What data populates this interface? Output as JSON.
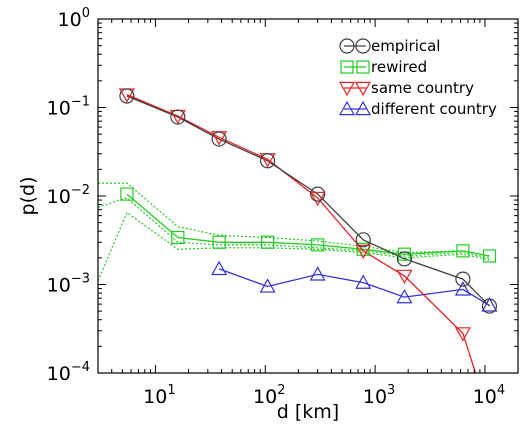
{
  "chart_data": {
    "type": "line",
    "xlabel": "d  [km]",
    "ylabel": "p(d)",
    "xscale": "log",
    "yscale": "log",
    "xlim": [
      3,
      20000
    ],
    "ylim": [
      0.0001,
      1
    ],
    "grid": false,
    "legend_position": "top-right",
    "x_ticks": [
      {
        "value": 10,
        "base": "10",
        "exp": "1"
      },
      {
        "value": 100,
        "base": "10",
        "exp": "2"
      },
      {
        "value": 1000,
        "base": "10",
        "exp": "3"
      },
      {
        "value": 10000,
        "base": "10",
        "exp": "4"
      }
    ],
    "y_ticks": [
      {
        "value": 0.0001,
        "base": "10",
        "exp": "−4"
      },
      {
        "value": 0.001,
        "base": "10",
        "exp": "−3"
      },
      {
        "value": 0.01,
        "base": "10",
        "exp": "−2"
      },
      {
        "value": 0.1,
        "base": "10",
        "exp": "−1"
      },
      {
        "value": 1,
        "base": "10",
        "exp": "0"
      }
    ],
    "series": [
      {
        "name": "empirical",
        "color": "#404040",
        "marker": "circle",
        "x": [
          5.5,
          16,
          38,
          105,
          300,
          780,
          1850,
          6300,
          11000
        ],
        "y": [
          0.135,
          0.078,
          0.044,
          0.025,
          0.0105,
          0.0032,
          0.00195,
          0.00115,
          0.00057
        ]
      },
      {
        "name": "rewired",
        "color": "#22cc22",
        "marker": "square",
        "x": [
          5.5,
          16,
          38,
          105,
          300,
          780,
          1850,
          6300,
          11000
        ],
        "y": [
          0.0105,
          0.0034,
          0.003,
          0.003,
          0.0028,
          0.0025,
          0.0022,
          0.0024,
          0.0021
        ]
      },
      {
        "name": "same country",
        "color": "#ee2222",
        "marker": "triangle-down",
        "x": [
          5.5,
          16,
          38,
          105,
          300,
          780,
          1850,
          6300,
          8200
        ],
        "y": [
          0.14,
          0.08,
          0.046,
          0.026,
          0.0095,
          0.0024,
          0.00125,
          0.00028,
          0.0001
        ]
      },
      {
        "name": "different country",
        "color": "#3333dd",
        "marker": "triangle-up",
        "x": [
          38,
          105,
          300,
          780,
          1850,
          6300,
          11000
        ],
        "y": [
          0.0015,
          0.00095,
          0.0013,
          0.00105,
          0.00072,
          0.00088,
          0.00058
        ]
      }
    ],
    "bands": [
      {
        "color": "#22cc22",
        "style": "dotted",
        "x": [
          3,
          5.5,
          16,
          38,
          105,
          300,
          780,
          1850,
          6300,
          11000
        ],
        "y": [
          0.014,
          0.014,
          0.0045,
          0.0036,
          0.0034,
          0.0031,
          0.0027,
          0.0023,
          0.0024,
          0.0021
        ]
      },
      {
        "color": "#22cc22",
        "style": "dotted",
        "x": [
          3,
          5.5,
          16,
          38,
          105,
          300,
          780,
          1850,
          6300,
          11000
        ],
        "y": [
          0.0075,
          0.0095,
          0.003,
          0.0028,
          0.0028,
          0.0026,
          0.0024,
          0.0021,
          0.0023,
          0.002
        ]
      },
      {
        "color": "#22cc22",
        "style": "dotted",
        "x": [
          3,
          5.5,
          16,
          38,
          105,
          300,
          780,
          1850,
          6300,
          11000
        ],
        "y": [
          0.0011,
          0.0065,
          0.0025,
          0.0026,
          0.0026,
          0.0025,
          0.0023,
          0.002,
          0.0022,
          0.0019
        ]
      }
    ]
  }
}
